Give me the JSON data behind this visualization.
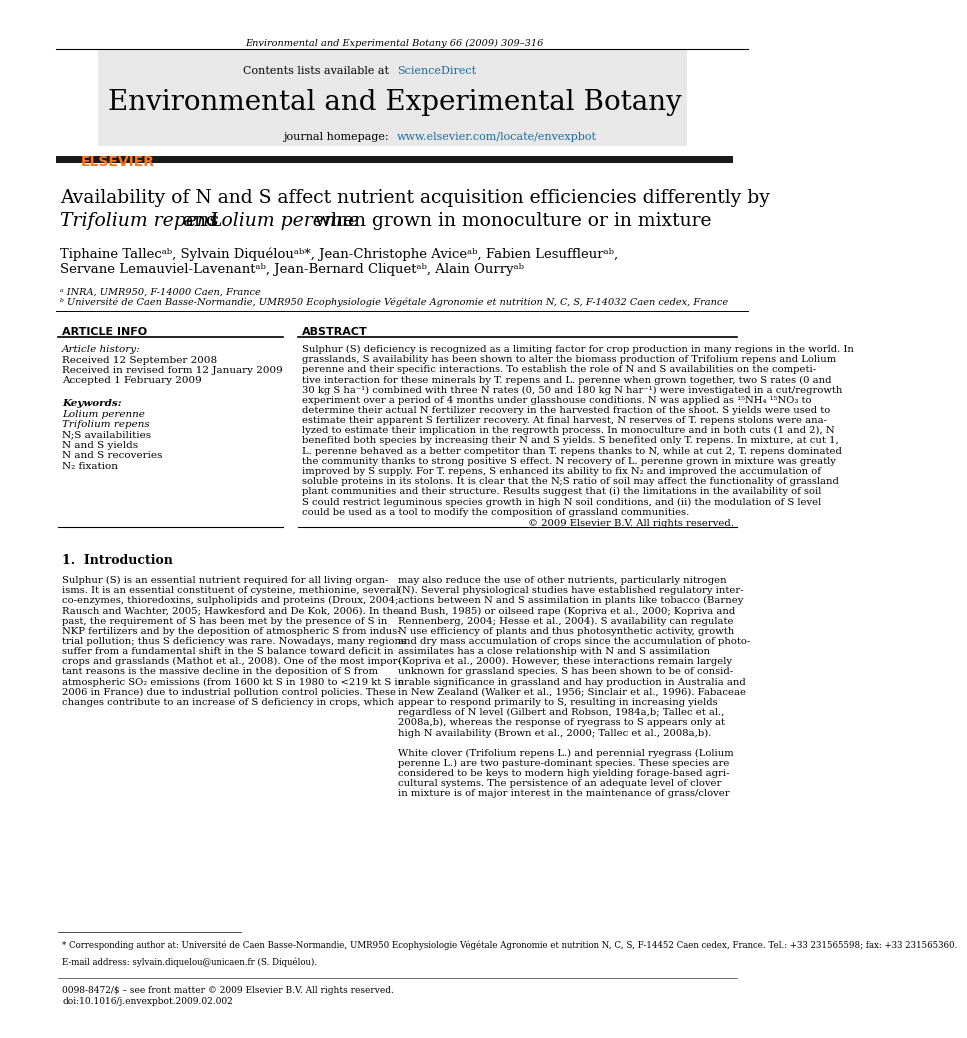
{
  "page_width": 9.92,
  "page_height": 13.23,
  "bg_color": "#ffffff",
  "journal_ref": "Environmental and Experimental Botany 66 (2009) 309–316",
  "journal_name": "Environmental and Experimental Botany",
  "header_bg": "#e8e8e8",
  "dark_bar_color": "#1a1a1a",
  "title_line1": "Availability of N and S affect nutrient acquisition efficiencies differently by",
  "section_article_info": "ARTICLE INFO",
  "section_abstract": "ABSTRACT",
  "article_history_label": "Article history:",
  "received1": "Received 12 September 2008",
  "received2": "Received in revised form 12 January 2009",
  "accepted": "Accepted 1 February 2009",
  "keywords_label": "Keywords:",
  "kw1": "Lolium perenne",
  "kw2": "Trifolium repens",
  "kw3": "N;S availabilities",
  "kw4": "N and S yields",
  "kw5": "N and S recoveries",
  "kw6": "N₂ fixation",
  "copyright": "© 2009 Elsevier B.V. All rights reserved.",
  "intro_heading": "1.  Introduction",
  "footnote_star": "* Corresponding author at: Université de Caen Basse-Normandie, UMR950 Ecophysiologie Végétale Agronomie et nutrition N, C, S, F-14452 Caen cedex, France. Tel.: +33 231565598; fax: +33 231565360.",
  "footnote_email": "E-mail address: sylvain.diquelou@unicaen.fr (S. Diquélou).",
  "footer1": "0098-8472/$ – see front matter © 2009 Elsevier B.V. All rights reserved.",
  "footer2": "doi:10.1016/j.envexpbot.2009.02.002",
  "elsevier_color": "#f47920",
  "link_color": "#1a6aa0",
  "text_color": "#000000"
}
